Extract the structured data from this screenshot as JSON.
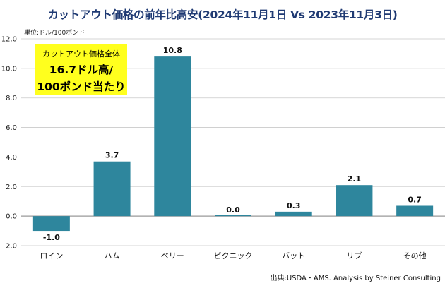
{
  "chart_data": {
    "type": "bar",
    "title": "カットアウト価格の前年比高安(2024年11月1日 Vs 2023年11月3日)",
    "unit_label": "単位:ドル/100ポンド",
    "categories": [
      "ロイン",
      "ハム",
      "ベリー",
      "ピクニック",
      "バット",
      "リブ",
      "その他"
    ],
    "series": [
      {
        "values": [
          -1.0,
          3.7,
          10.8,
          0.0,
          0.3,
          2.1,
          0.7
        ]
      }
    ],
    "data_labels": [
      "-1.0",
      "3.7",
      "10.8",
      "0.0",
      "0.3",
      "2.1",
      "0.7"
    ],
    "yticks": [
      "12.0",
      "10.0",
      "8.0",
      "6.0",
      "4.0",
      "2.0",
      "0.0",
      "-2.0"
    ],
    "ylim": [
      -2,
      12
    ],
    "grid": true,
    "bar_color": "#2e869d",
    "source": "出典:USDA・AMS. Analysis by Steiner Consulting",
    "callout": {
      "line1": "カットアウト価格全体",
      "line2": "16.7ドル高/",
      "line3": "100ポンド当たり",
      "background": "#ffff1e"
    }
  }
}
